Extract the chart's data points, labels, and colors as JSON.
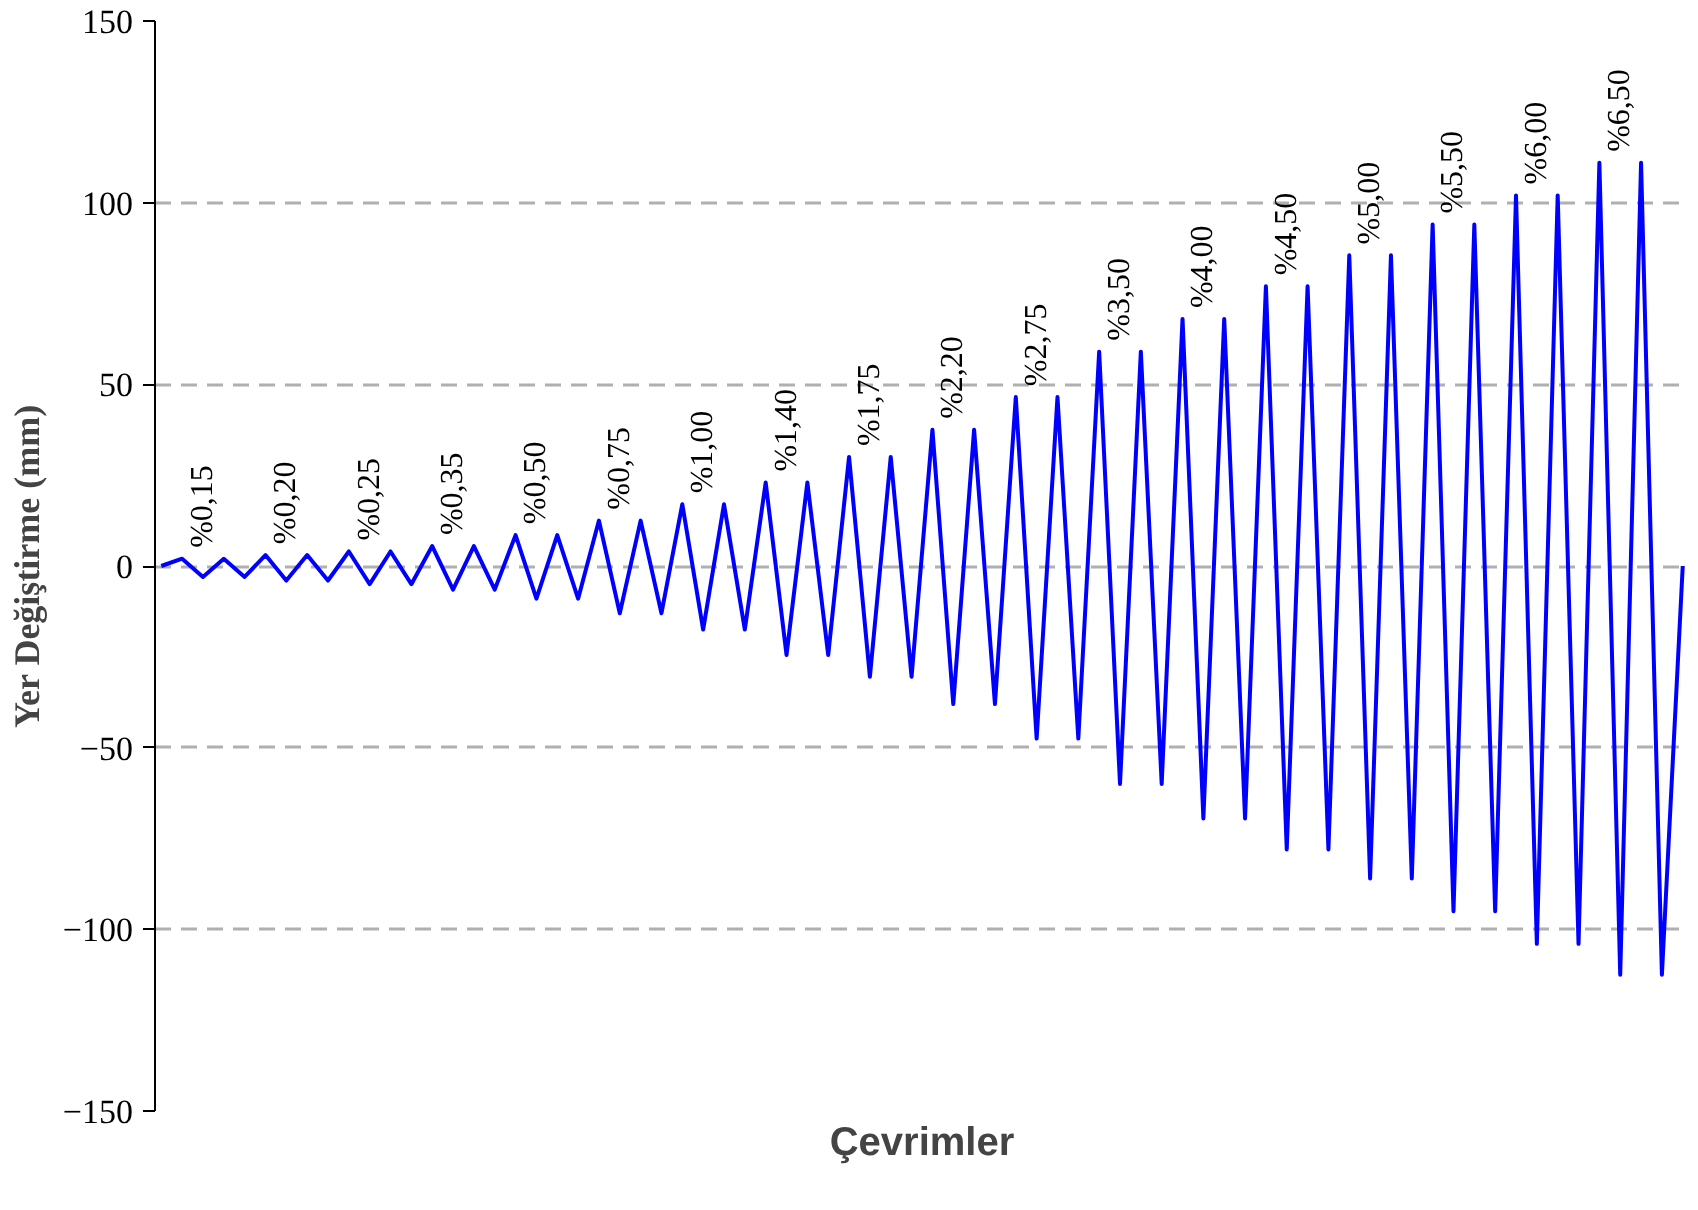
{
  "chart_data": {
    "type": "line",
    "xlabel": "Çevrimler",
    "ylabel": "Yer Değiştirme (mm)",
    "categories": [
      null,
      null,
      null,
      null,
      null,
      null,
      null,
      null,
      null,
      null,
      null,
      null,
      null,
      null,
      null,
      null,
      null,
      null,
      null,
      null,
      null,
      null,
      null,
      null,
      null,
      null,
      null,
      null,
      null,
      null,
      null,
      null,
      null,
      null,
      null,
      null,
      null,
      null,
      null,
      null,
      null,
      null,
      null,
      null,
      null,
      null,
      null,
      null,
      null,
      null,
      null,
      null,
      null,
      null,
      null,
      null,
      null,
      null,
      null,
      null,
      null,
      null,
      null,
      null,
      null,
      null,
      null,
      null,
      null,
      null,
      null,
      null,
      null,
      null
    ],
    "series": [
      {
        "color": "#0000ff",
        "values": [
          0,
          2,
          -3,
          2,
          -3,
          3,
          -4,
          3,
          -4,
          4,
          -5,
          4,
          -5,
          5.5,
          -6.5,
          5.5,
          -6.5,
          8.5,
          -9,
          8.5,
          -9,
          12.5,
          -13,
          12.5,
          -13,
          17,
          -17.5,
          17,
          -17.5,
          23,
          -24.5,
          23,
          -24.5,
          30,
          -30.5,
          30,
          -30.5,
          37.5,
          -38,
          37.5,
          -38,
          46.5,
          -47.5,
          46.5,
          -47.5,
          59,
          -60,
          59,
          -60,
          68,
          -69.5,
          68,
          -69.5,
          77,
          -78,
          77,
          -78,
          85.5,
          -86,
          85.5,
          -86,
          94,
          -95,
          94,
          -95,
          102,
          -104,
          102,
          -104,
          111,
          -112.5,
          111,
          -112.5,
          0
        ]
      }
    ],
    "annotations": [
      "%0,15",
      "%0,20",
      "%0,25",
      "%0,35",
      "%0,50",
      "%0,75",
      "%1,00",
      "%1,40",
      "%1,75",
      "%2,20",
      "%2,75",
      "%3,50",
      "%4,00",
      "%4,50",
      "%5,00",
      "%5,50",
      "%6,00",
      "%6,50"
    ],
    "ylim": [
      -150,
      150
    ],
    "yticks": [
      -150,
      -100,
      -50,
      0,
      50,
      100,
      150
    ],
    "grid": "y",
    "marker": "none",
    "line_style": "solid",
    "tick_labels": "y"
  }
}
